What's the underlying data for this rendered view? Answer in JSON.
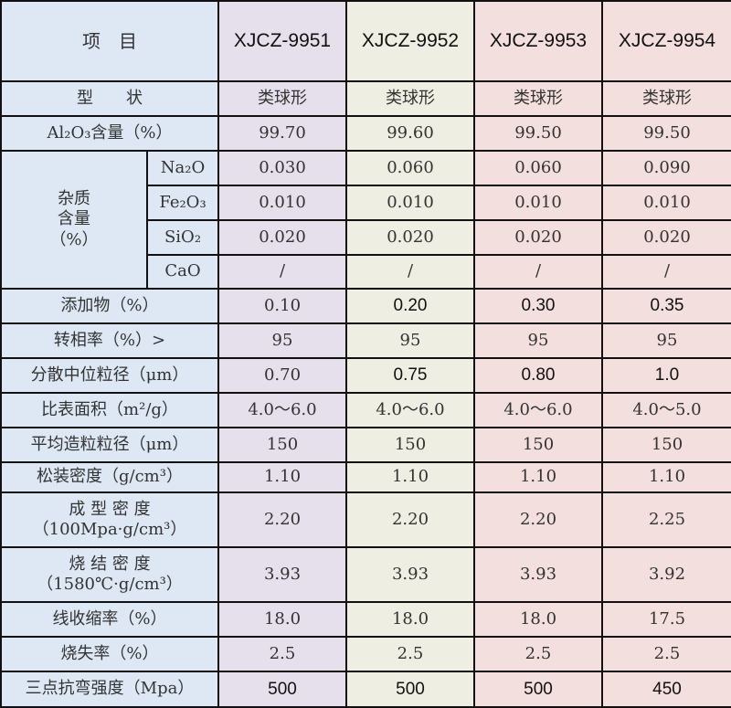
{
  "header": {
    "item": "项　目",
    "models": [
      "XJCZ-9951",
      "XJCZ-9952",
      "XJCZ-9953",
      "XJCZ-9954"
    ]
  },
  "column_colors": [
    "#dde8f4",
    "#e6e0ec",
    "#efeee2",
    "#f3dfdd",
    "#f3dfdd"
  ],
  "rows": [
    {
      "label": "型　　状",
      "values": [
        "类球形",
        "类球形",
        "类球形",
        "类球形"
      ]
    },
    {
      "label": "Al₂O₃含量（%）",
      "values": [
        "99.70",
        "99.60",
        "99.50",
        "99.50"
      ]
    },
    {
      "group": "杂质\n含量\n（%）",
      "label": "Na₂O",
      "values": [
        "0.030",
        "0.060",
        "0.060",
        "0.090"
      ]
    },
    {
      "label": "Fe₂O₃",
      "values": [
        "0.010",
        "0.010",
        "0.010",
        "0.010"
      ]
    },
    {
      "label": "SiO₂",
      "values": [
        "0.020",
        "0.020",
        "0.020",
        "0.020"
      ]
    },
    {
      "label": "CaO",
      "values": [
        "/",
        "/",
        "/",
        "/"
      ]
    },
    {
      "label": "添加物（%）",
      "values": [
        "0.10",
        "0.20",
        "0.30",
        "0.35"
      ]
    },
    {
      "label": "转相率（%）>",
      "values": [
        "95",
        "95",
        "95",
        "95"
      ]
    },
    {
      "label": "分散中位粒径（μm）",
      "values": [
        "0.70",
        "0.75",
        "0.80",
        "1.0"
      ]
    },
    {
      "label": "比表面积（m²/g）",
      "values": [
        "4.0～6.0",
        "4.0～6.0",
        "4.0～6.0",
        "4.0～5.0"
      ]
    },
    {
      "label": "平均造粒粒径（μm）",
      "values": [
        "150",
        "150",
        "150",
        "150"
      ]
    },
    {
      "label": "松装密度（g/cm³）",
      "values": [
        "1.10",
        "1.10",
        "1.10",
        "1.10"
      ]
    },
    {
      "label": "成 型 密 度\n（100Mpa·g/cm³）",
      "values": [
        "2.20",
        "2.20",
        "2.20",
        "2.25"
      ]
    },
    {
      "label": "烧 结 密 度\n（1580℃·g/cm³）",
      "values": [
        "3.93",
        "3.93",
        "3.93",
        "3.92"
      ]
    },
    {
      "label": "线收缩率（%）",
      "values": [
        "18.0",
        "18.0",
        "18.0",
        "17.5"
      ]
    },
    {
      "label": "烧失率（%）",
      "values": [
        "2.5",
        "2.5",
        "2.5",
        "2.5"
      ]
    },
    {
      "label": "三点抗弯强度（Mpa）",
      "values": [
        "500",
        "500",
        "500",
        "450"
      ]
    }
  ]
}
